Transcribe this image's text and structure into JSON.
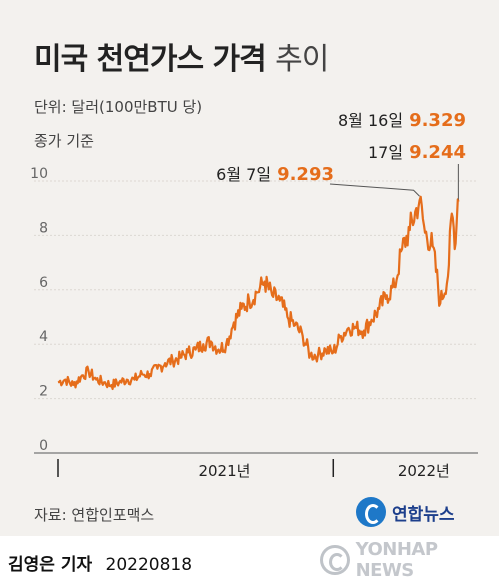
{
  "header": {
    "title_bold": "미국 천연가스 가격",
    "title_light": "추이",
    "unit_note": "단위: 달러(100만BTU 당)",
    "basis_note": "종가 기준"
  },
  "colors": {
    "line": "#e56d1b",
    "accent_value": "#e56d1b",
    "background": "#f3f1ee"
  },
  "chart_data": {
    "type": "line",
    "title": "미국 천연가스 가격 추이",
    "xlabel": "",
    "ylabel": "",
    "ylim": [
      0,
      10
    ],
    "yticks": [
      "0",
      "2",
      "4",
      "6",
      "8",
      "10"
    ],
    "xlim": [
      "2020-08-14",
      "2022-08-20"
    ],
    "x_ticks": [
      {
        "x": "2020-08-14",
        "label": ""
      },
      {
        "x": "2021-01-01",
        "label": "2021년"
      },
      {
        "x": "2021-12-31",
        "label": ""
      },
      {
        "x": "2022-01-01",
        "label": "2022년"
      }
    ],
    "grid": true,
    "series": [
      {
        "x": [
          "2020-08-14",
          "2020-08-28",
          "2020-09-11",
          "2020-09-25",
          "2020-10-09",
          "2020-10-23",
          "2020-11-06",
          "2020-11-20",
          "2020-12-04",
          "2020-12-18",
          "2021-01-01",
          "2021-01-15",
          "2021-01-29",
          "2021-02-12",
          "2021-02-26",
          "2021-03-12",
          "2021-03-26",
          "2021-04-09",
          "2021-04-23",
          "2021-05-07",
          "2021-05-21",
          "2021-06-04",
          "2021-06-18",
          "2021-07-02",
          "2021-07-16",
          "2021-07-30",
          "2021-08-13",
          "2021-08-27",
          "2021-09-10",
          "2021-09-24",
          "2021-10-08",
          "2021-10-22",
          "2021-11-05",
          "2021-11-19",
          "2021-12-03",
          "2021-12-17",
          "2021-12-31",
          "2022-01-14",
          "2022-01-28",
          "2022-02-11",
          "2022-02-25",
          "2022-03-11",
          "2022-03-25",
          "2022-04-08",
          "2022-04-22",
          "2022-05-06",
          "2022-05-20",
          "2022-06-07",
          "2022-06-17",
          "2022-07-01",
          "2022-07-15",
          "2022-07-29",
          "2022-08-05",
          "2022-08-12",
          "2022-08-16",
          "2022-08-17"
        ],
        "values": [
          2.6,
          2.7,
          2.5,
          2.8,
          3.0,
          2.7,
          2.6,
          2.5,
          2.6,
          2.7,
          2.7,
          2.9,
          2.9,
          3.1,
          3.3,
          3.4,
          3.5,
          3.7,
          3.8,
          4.0,
          4.1,
          3.8,
          4.0,
          4.8,
          5.3,
          5.6,
          5.9,
          6.3,
          5.8,
          5.6,
          5.0,
          4.7,
          4.3,
          3.6,
          3.6,
          3.8,
          3.7,
          4.3,
          4.6,
          4.6,
          4.5,
          4.9,
          5.3,
          5.8,
          6.1,
          7.5,
          8.2,
          9.293,
          8.1,
          7.6,
          5.5,
          6.5,
          8.8,
          7.7,
          9.329,
          9.244
        ]
      }
    ],
    "annotations": [
      {
        "x": "2022-06-07",
        "date_label": "6월 7일",
        "value_label": "9.293"
      },
      {
        "x": "2022-08-16",
        "date_label": "8월 16일",
        "value_label": "9.329"
      },
      {
        "x": "2022-08-17",
        "date_label": "17일",
        "value_label": "9.244"
      }
    ]
  },
  "footer": {
    "source": "자료: 연합인포맥스",
    "logo_text": "연합뉴스",
    "reporter": "김영은 기자",
    "date": "20220818",
    "watermark": "YONHAP NEWS"
  }
}
